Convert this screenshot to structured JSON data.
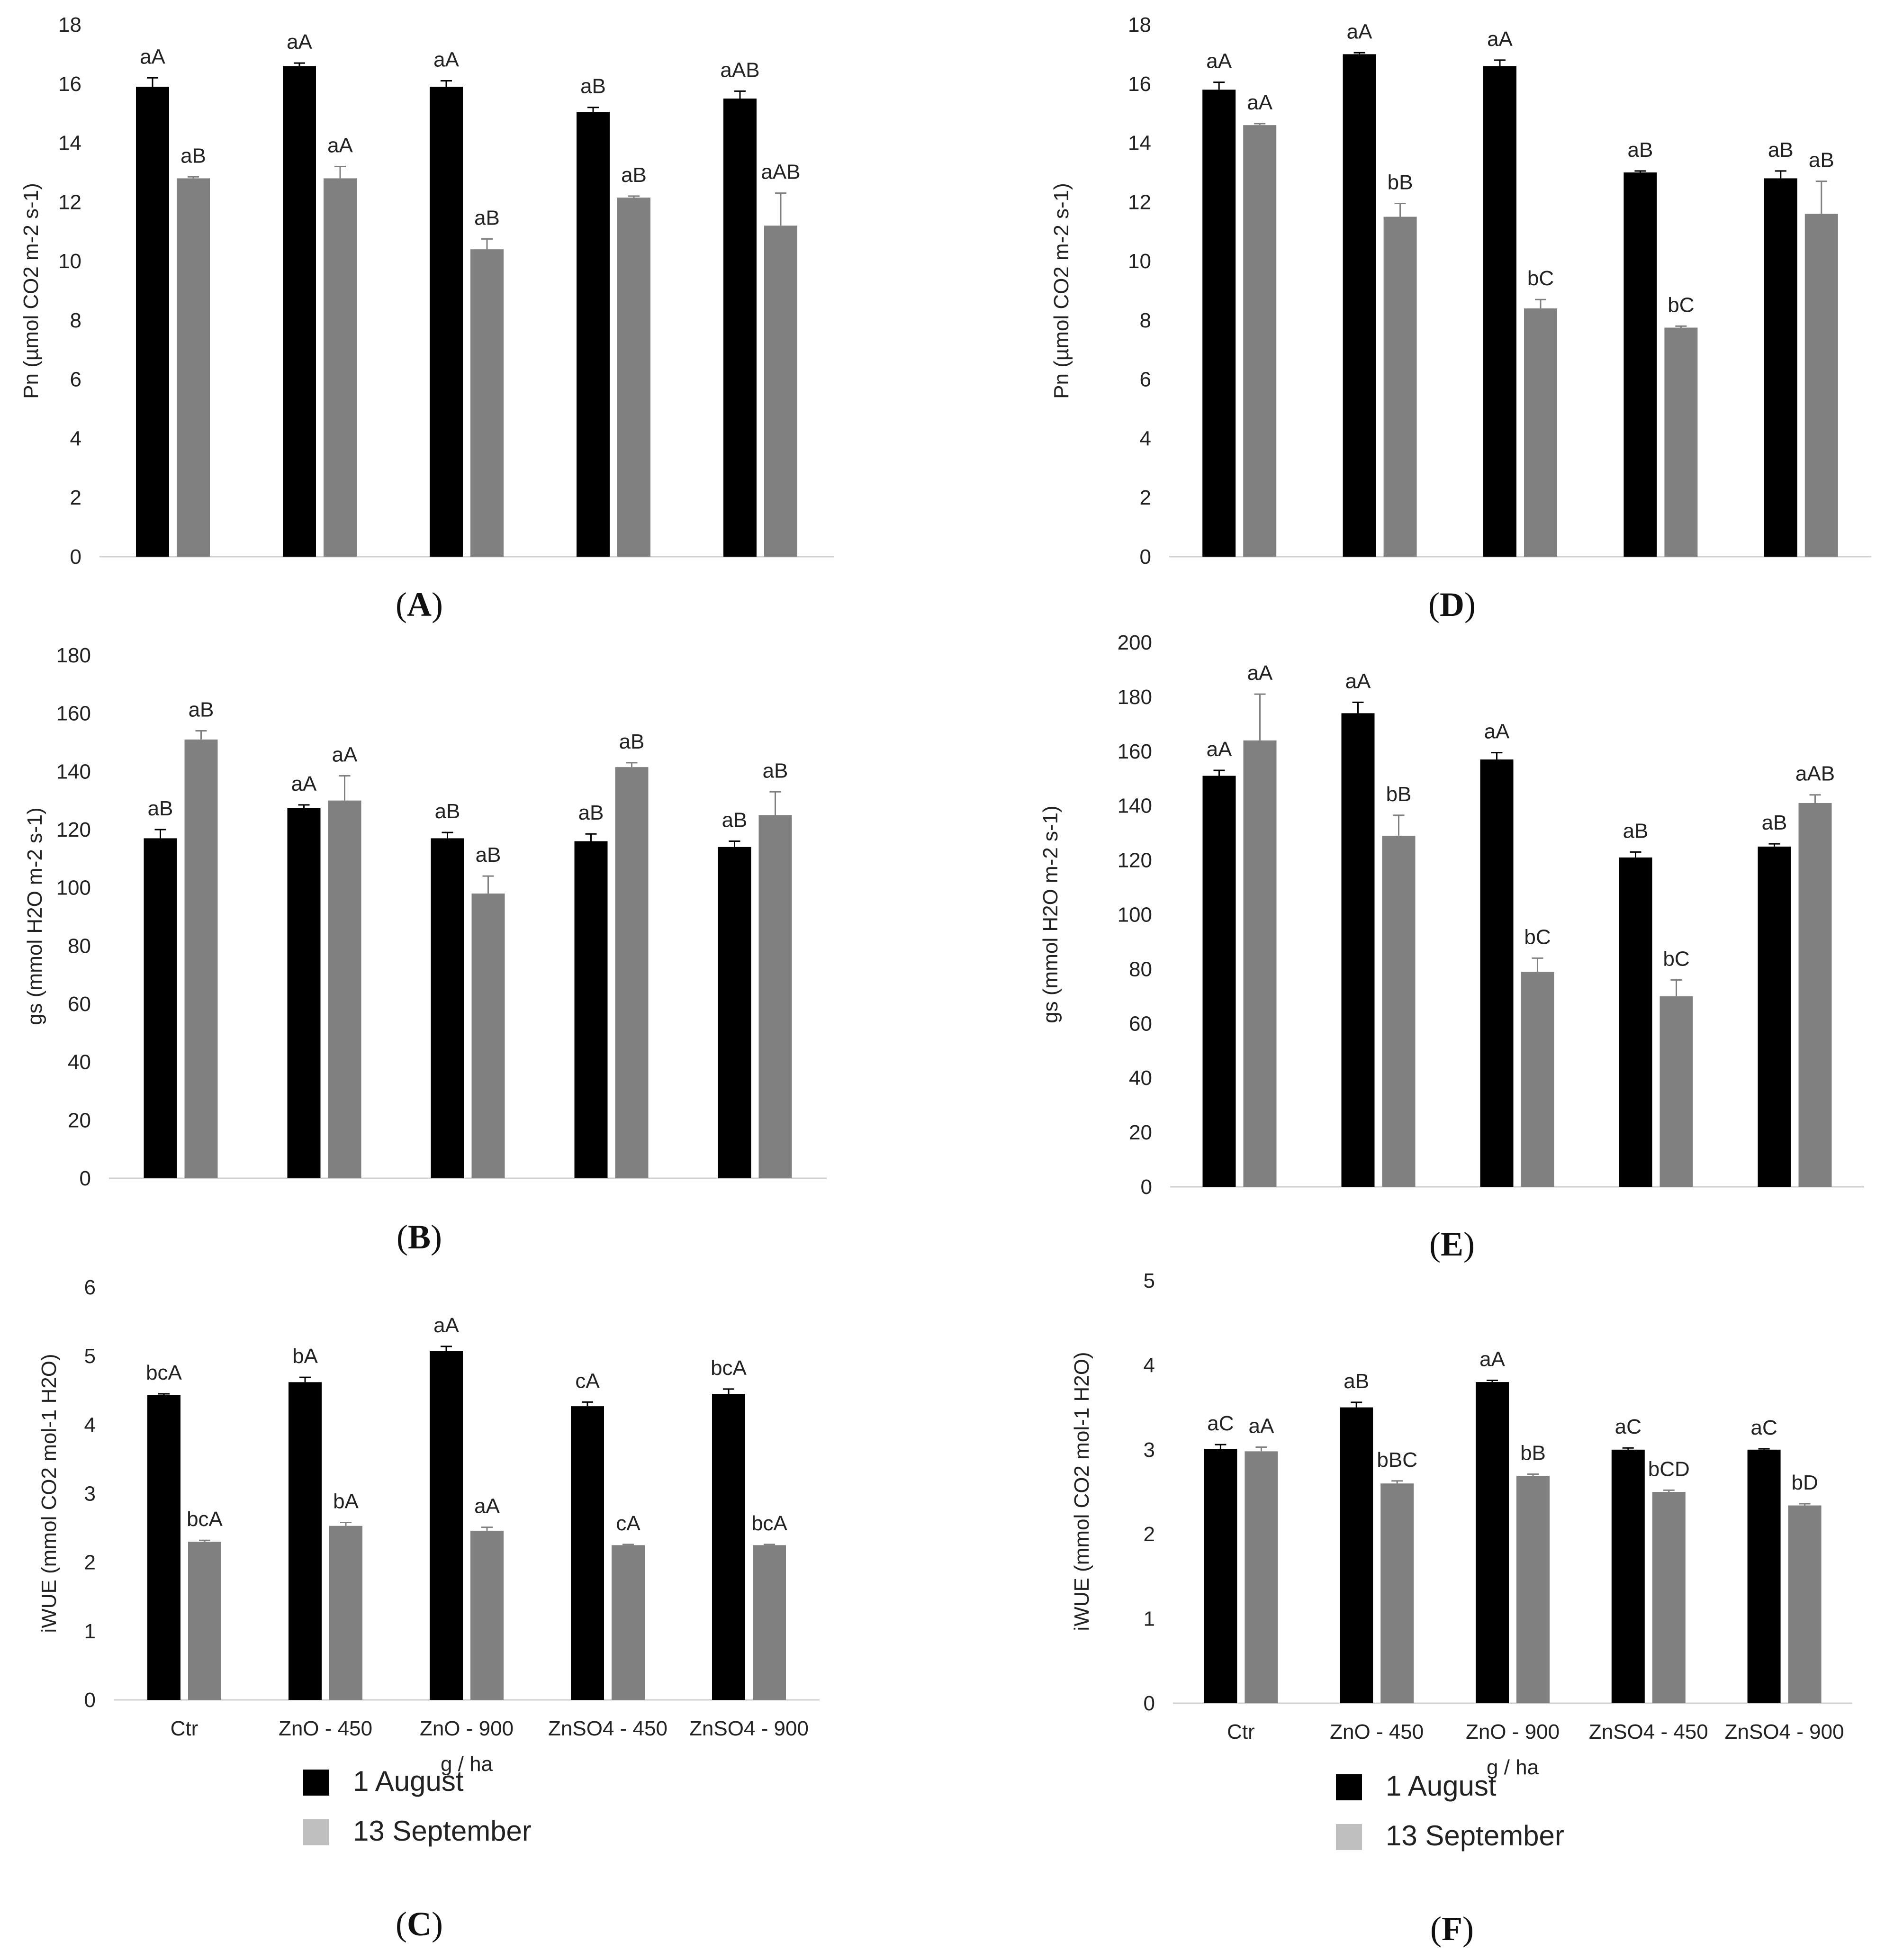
{
  "colors": {
    "series1": "#000000",
    "series2": "#808080",
    "axis": "#d0d0d0",
    "text": "#222222"
  },
  "legend": [
    {
      "label": "1 August",
      "color": "#000000"
    },
    {
      "label": "13 September",
      "color": "#bfbfbf"
    }
  ],
  "chart_data": [
    {
      "id": "A",
      "panel_label": "A",
      "type": "bar",
      "ylabel": "Pn (µmol CO2 m-2 s-1)",
      "ylim": [
        0,
        18
      ],
      "ystep": 2,
      "yticks": [
        "0",
        "2",
        "4",
        "6",
        "8",
        "10",
        "12",
        "14",
        "16",
        "18"
      ],
      "categories": [
        "Ctr",
        "ZnO - 450",
        "ZnO - 900",
        "ZnSO4 - 450",
        "ZnSO4 - 900"
      ],
      "show_xticks": false,
      "xlabel": "",
      "series": [
        {
          "name": "1 August",
          "values": [
            15.9,
            16.6,
            15.9,
            15.05,
            15.5
          ],
          "errors": [
            0.3,
            0.1,
            0.2,
            0.15,
            0.25
          ],
          "labels": [
            "aA",
            "aA",
            "aA",
            "aB",
            "aAB"
          ]
        },
        {
          "name": "13 September",
          "values": [
            12.8,
            12.8,
            10.4,
            12.15,
            11.2
          ],
          "errors": [
            0.05,
            0.4,
            0.35,
            0.05,
            1.1
          ],
          "labels": [
            "aB",
            "aA",
            "aB",
            "aB",
            "aAB"
          ]
        }
      ]
    },
    {
      "id": "D",
      "panel_label": "D",
      "type": "bar",
      "ylabel": "Pn (µmol CO2 m-2 s-1)",
      "ylim": [
        0,
        18
      ],
      "ystep": 2,
      "yticks": [
        "0",
        "2",
        "4",
        "6",
        "8",
        "10",
        "12",
        "14",
        "16",
        "18"
      ],
      "categories": [
        "Ctr",
        "ZnO - 450",
        "ZnO - 900",
        "ZnSO4 - 450",
        "ZnSO4 - 900"
      ],
      "show_xticks": false,
      "xlabel": "",
      "series": [
        {
          "name": "1 August",
          "values": [
            15.8,
            17.0,
            16.6,
            13.0,
            12.8
          ],
          "errors": [
            0.25,
            0.05,
            0.2,
            0.05,
            0.25
          ],
          "labels": [
            "aA",
            "aA",
            "aA",
            "aB",
            "aB"
          ]
        },
        {
          "name": "13 September",
          "values": [
            14.6,
            11.5,
            8.4,
            7.75,
            11.6
          ],
          "errors": [
            0.05,
            0.45,
            0.3,
            0.05,
            1.1
          ],
          "labels": [
            "aA",
            "bB",
            "bC",
            "bC",
            "aB"
          ]
        }
      ]
    },
    {
      "id": "B",
      "panel_label": "B",
      "type": "bar",
      "ylabel": "gs (mmol H2O m-2 s-1)",
      "ylim": [
        0,
        180
      ],
      "ystep": 20,
      "yticks": [
        "0",
        "20",
        "40",
        "60",
        "80",
        "100",
        "120",
        "140",
        "160",
        "180"
      ],
      "categories": [
        "Ctr",
        "ZnO - 450",
        "ZnO - 900",
        "ZnSO4 - 450",
        "ZnSO4 - 900"
      ],
      "show_xticks": false,
      "xlabel": "",
      "series": [
        {
          "name": "1 August",
          "values": [
            117,
            127.5,
            117,
            116,
            114
          ],
          "errors": [
            3,
            1,
            2,
            2.5,
            2
          ],
          "labels": [
            "aB",
            "aA",
            "aB",
            "aB",
            "aB"
          ]
        },
        {
          "name": "13 September",
          "values": [
            151,
            130,
            98,
            141.5,
            125
          ],
          "errors": [
            3,
            8.5,
            6,
            1.5,
            8
          ],
          "labels": [
            "aB",
            "aA",
            "aB",
            "aB",
            "aB"
          ]
        }
      ]
    },
    {
      "id": "E",
      "panel_label": "E",
      "type": "bar",
      "ylabel": "gs (mmol H2O m-2 s-1)",
      "ylim": [
        0,
        200
      ],
      "ystep": 20,
      "yticks": [
        "0",
        "20",
        "40",
        "60",
        "80",
        "100",
        "120",
        "140",
        "160",
        "180",
        "200"
      ],
      "categories": [
        "Ctr",
        "ZnO - 450",
        "ZnO - 900",
        "ZnSO4 - 450",
        "ZnSO4 - 900"
      ],
      "show_xticks": false,
      "xlabel": "",
      "series": [
        {
          "name": "1 August",
          "values": [
            151,
            174,
            157,
            121,
            125
          ],
          "errors": [
            2,
            4,
            2.5,
            2,
            1
          ],
          "labels": [
            "aA",
            "aA",
            "aA",
            "aB",
            "aB"
          ]
        },
        {
          "name": "13 September",
          "values": [
            164,
            129,
            79,
            70,
            141
          ],
          "errors": [
            17,
            7.5,
            5,
            6,
            3
          ],
          "labels": [
            "aA",
            "bB",
            "bC",
            "bC",
            "aAB"
          ]
        }
      ]
    },
    {
      "id": "C",
      "panel_label": "C",
      "type": "bar",
      "ylabel": "iWUE (mmol CO2 mol-1 H2O)",
      "ylim": [
        0,
        6
      ],
      "ystep": 1,
      "yticks": [
        "0",
        "1",
        "2",
        "3",
        "4",
        "5",
        "6"
      ],
      "categories": [
        "Ctr",
        "ZnO - 450",
        "ZnO - 900",
        "ZnSO4 - 450",
        "ZnSO4 - 900"
      ],
      "show_xticks": true,
      "xlabel": "g / ha",
      "series": [
        {
          "name": "1 August",
          "values": [
            4.43,
            4.62,
            5.07,
            4.27,
            4.45
          ],
          "errors": [
            0.02,
            0.07,
            0.07,
            0.06,
            0.07
          ],
          "labels": [
            "bcA",
            "bA",
            "aA",
            "cA",
            "bcA"
          ]
        },
        {
          "name": "13 September",
          "values": [
            2.3,
            2.53,
            2.46,
            2.25,
            2.25
          ],
          "errors": [
            0.02,
            0.05,
            0.05,
            0.01,
            0.01
          ],
          "labels": [
            "bcA",
            "bA",
            "aA",
            "cA",
            "bcA"
          ]
        }
      ]
    },
    {
      "id": "F",
      "panel_label": "F",
      "type": "bar",
      "ylabel": "iWUE (mmol CO2 mol-1 H2O)",
      "ylim": [
        0,
        5
      ],
      "ystep": 1,
      "yticks": [
        "0",
        "1",
        "2",
        "3",
        "4",
        "5"
      ],
      "categories": [
        "Ctr",
        "ZnO - 450",
        "ZnO - 900",
        "ZnSO4 - 450",
        "ZnSO4 - 900"
      ],
      "show_xticks": true,
      "xlabel": "g / ha",
      "series": [
        {
          "name": "1 August",
          "values": [
            3.01,
            3.5,
            3.8,
            3.0,
            3.0
          ],
          "errors": [
            0.05,
            0.06,
            0.02,
            0.02,
            0.01
          ],
          "labels": [
            "aC",
            "aB",
            "aA",
            "aC",
            "aC"
          ]
        },
        {
          "name": "13 September",
          "values": [
            2.98,
            2.6,
            2.69,
            2.5,
            2.34
          ],
          "errors": [
            0.05,
            0.03,
            0.02,
            0.02,
            0.02
          ],
          "labels": [
            "aA",
            "bBC",
            "bB",
            "bCD",
            "bD"
          ]
        }
      ]
    }
  ]
}
